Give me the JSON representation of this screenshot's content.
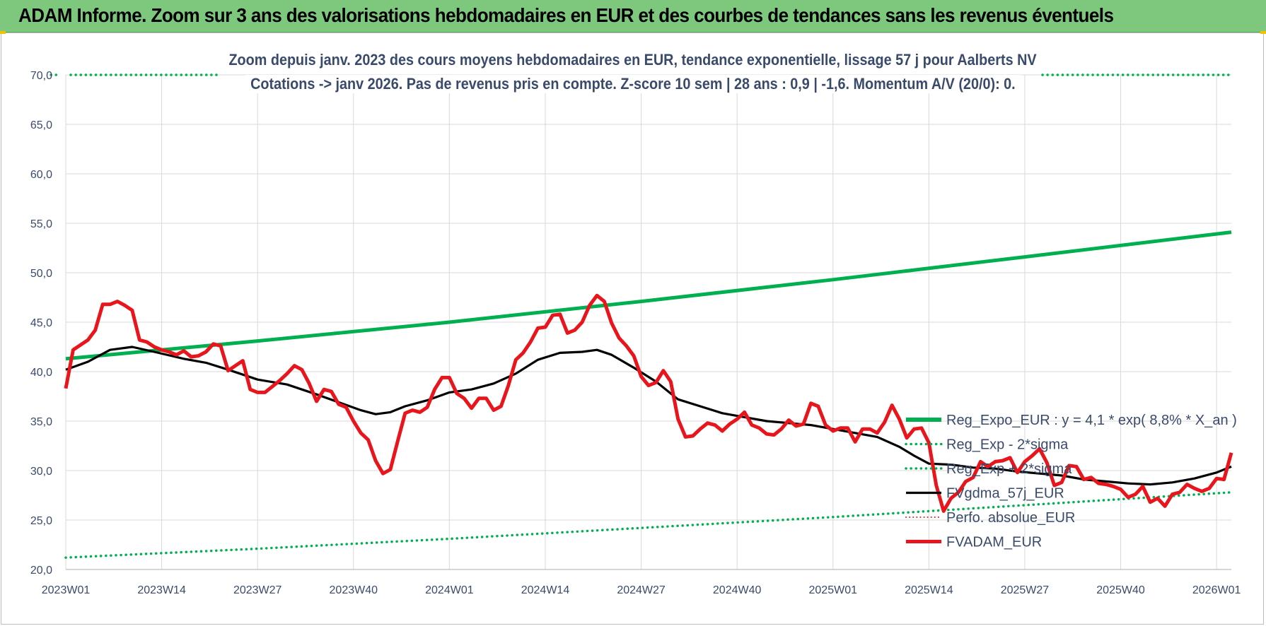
{
  "banner": {
    "title": "ADAM Informe. Zoom sur 3 ans des valorisations hebdomadaires en EUR et des courbes de tendances sans les revenus éventuels"
  },
  "chart_data": {
    "type": "line",
    "title_line1": "Zoom depuis janv. 2023 des cours moyens hebdomadaires en EUR, tendance exponentielle, lissage 57 j pour Aalberts NV",
    "title_line2": "Cotations -> janv 2026. Pas de revenus pris en compte. Z-score 10 sem | 28 ans : 0,9 | -1,6. Momentum A/V (20/0): 0.",
    "ylim": [
      20,
      70
    ],
    "y_ticks": [
      "20,0",
      "25,0",
      "30,0",
      "35,0",
      "40,0",
      "45,0",
      "50,0",
      "55,0",
      "60,0",
      "65,0",
      "70,0"
    ],
    "x_range": [
      0,
      158
    ],
    "x_ticks": [
      {
        "label": "2023W01",
        "x": 0
      },
      {
        "label": "2023W14",
        "x": 13
      },
      {
        "label": "2023W27",
        "x": 26
      },
      {
        "label": "2023W40",
        "x": 39
      },
      {
        "label": "2024W01",
        "x": 52
      },
      {
        "label": "2024W14",
        "x": 65
      },
      {
        "label": "2024W27",
        "x": 78
      },
      {
        "label": "2024W40",
        "x": 91
      },
      {
        "label": "2025W01",
        "x": 104
      },
      {
        "label": "2025W14",
        "x": 117
      },
      {
        "label": "2025W27",
        "x": 130
      },
      {
        "label": "2025W40",
        "x": 143
      },
      {
        "label": "2026W01",
        "x": 156
      }
    ],
    "colors": {
      "reg_expo": "#00b050",
      "reg_minus": "#00b050",
      "reg_plus": "#00b050",
      "fvgdma": "#000000",
      "perfo": "#e0201b",
      "fvadam": "#e8161c",
      "grid": "#d9d9d9"
    },
    "series": [
      {
        "name": "Reg_Expo_EUR : y = 4,1 * exp( 8,8% *  X_an )",
        "key": "reg_expo",
        "style": "solid-thick",
        "points": [
          [
            0,
            41.3
          ],
          [
            26,
            43.1
          ],
          [
            52,
            45.0
          ],
          [
            78,
            47.1
          ],
          [
            104,
            49.3
          ],
          [
            130,
            51.6
          ],
          [
            158,
            54.1
          ]
        ]
      },
      {
        "name": "Reg_Exp - 2*sigma",
        "key": "reg_minus",
        "style": "dotted",
        "points": [
          [
            0,
            21.2
          ],
          [
            26,
            22.1
          ],
          [
            52,
            23.1
          ],
          [
            78,
            24.2
          ],
          [
            104,
            25.3
          ],
          [
            130,
            26.5
          ],
          [
            158,
            27.8
          ]
        ]
      },
      {
        "name": "Reg_Exp + 2*sigma",
        "key": "reg_plus",
        "style": "dotted",
        "points": [
          [
            -2,
            70.0
          ],
          [
            -1,
            70.0
          ]
        ]
      },
      {
        "name": "FVgdma_57j_EUR",
        "key": "fvgdma",
        "style": "solid",
        "points": [
          [
            0,
            40.2
          ],
          [
            3,
            41.0
          ],
          [
            6,
            42.2
          ],
          [
            9,
            42.5
          ],
          [
            12,
            42.0
          ],
          [
            16,
            41.3
          ],
          [
            19,
            40.9
          ],
          [
            22,
            40.2
          ],
          [
            26,
            39.2
          ],
          [
            30,
            38.7
          ],
          [
            34,
            37.7
          ],
          [
            37,
            36.9
          ],
          [
            40,
            36.1
          ],
          [
            42,
            35.7
          ],
          [
            44,
            35.9
          ],
          [
            46,
            36.5
          ],
          [
            49,
            37.1
          ],
          [
            52,
            37.9
          ],
          [
            55,
            38.2
          ],
          [
            58,
            38.8
          ],
          [
            61,
            39.8
          ],
          [
            64,
            41.2
          ],
          [
            67,
            41.9
          ],
          [
            70,
            42.0
          ],
          [
            72,
            42.2
          ],
          [
            74,
            41.7
          ],
          [
            77,
            40.4
          ],
          [
            80,
            39.0
          ],
          [
            83,
            37.2
          ],
          [
            86,
            36.5
          ],
          [
            89,
            35.8
          ],
          [
            92,
            35.4
          ],
          [
            95,
            35.0
          ],
          [
            98,
            34.8
          ],
          [
            101,
            34.6
          ],
          [
            104,
            34.2
          ],
          [
            107,
            33.8
          ],
          [
            110,
            33.4
          ],
          [
            113,
            32.4
          ],
          [
            115,
            31.5
          ],
          [
            117,
            30.7
          ],
          [
            120,
            30.6
          ],
          [
            123,
            30.3
          ],
          [
            126,
            30.2
          ],
          [
            129,
            29.9
          ],
          [
            132,
            29.7
          ],
          [
            135,
            29.5
          ],
          [
            138,
            29.1
          ],
          [
            141,
            28.9
          ],
          [
            144,
            28.7
          ],
          [
            147,
            28.6
          ],
          [
            150,
            28.8
          ],
          [
            153,
            29.2
          ],
          [
            156,
            29.8
          ],
          [
            158,
            30.4
          ]
        ]
      },
      {
        "name": "Perfo. absolue_EUR",
        "key": "perfo",
        "style": "dotted-thin",
        "points": []
      },
      {
        "name": "FVADAM_EUR",
        "key": "fvadam",
        "style": "solid-thick",
        "points": [
          [
            0,
            38.3
          ],
          [
            1,
            42.2
          ],
          [
            2,
            42.7
          ],
          [
            3,
            43.2
          ],
          [
            4,
            44.2
          ],
          [
            5,
            46.8
          ],
          [
            6,
            46.8
          ],
          [
            7,
            47.1
          ],
          [
            8,
            46.7
          ],
          [
            9,
            46.2
          ],
          [
            10,
            43.2
          ],
          [
            11,
            43.0
          ],
          [
            12,
            42.5
          ],
          [
            13,
            42.2
          ],
          [
            14,
            42.0
          ],
          [
            15,
            41.7
          ],
          [
            16,
            42.1
          ],
          [
            17,
            41.5
          ],
          [
            18,
            41.6
          ],
          [
            19,
            42.0
          ],
          [
            20,
            42.8
          ],
          [
            21,
            42.6
          ],
          [
            22,
            40.1
          ],
          [
            23,
            40.6
          ],
          [
            24,
            41.1
          ],
          [
            25,
            38.2
          ],
          [
            26,
            37.9
          ],
          [
            27,
            37.9
          ],
          [
            28,
            38.5
          ],
          [
            29,
            39.1
          ],
          [
            30,
            39.8
          ],
          [
            31,
            40.6
          ],
          [
            32,
            40.2
          ],
          [
            33,
            38.8
          ],
          [
            34,
            37.0
          ],
          [
            35,
            38.2
          ],
          [
            36,
            38.0
          ],
          [
            37,
            36.7
          ],
          [
            38,
            36.4
          ],
          [
            39,
            35.0
          ],
          [
            40,
            33.8
          ],
          [
            41,
            33.1
          ],
          [
            42,
            31.0
          ],
          [
            43,
            29.7
          ],
          [
            44,
            30.1
          ],
          [
            45,
            33.0
          ],
          [
            46,
            35.8
          ],
          [
            47,
            36.1
          ],
          [
            48,
            35.9
          ],
          [
            49,
            36.4
          ],
          [
            50,
            38.2
          ],
          [
            51,
            39.4
          ],
          [
            52,
            39.4
          ],
          [
            53,
            37.8
          ],
          [
            54,
            37.3
          ],
          [
            55,
            36.3
          ],
          [
            56,
            37.3
          ],
          [
            57,
            37.3
          ],
          [
            58,
            36.1
          ],
          [
            59,
            36.5
          ],
          [
            60,
            38.6
          ],
          [
            61,
            41.2
          ],
          [
            62,
            41.9
          ],
          [
            63,
            43.0
          ],
          [
            64,
            44.4
          ],
          [
            65,
            44.5
          ],
          [
            66,
            45.7
          ],
          [
            67,
            45.8
          ],
          [
            68,
            43.9
          ],
          [
            69,
            44.2
          ],
          [
            70,
            45.0
          ],
          [
            71,
            46.7
          ],
          [
            72,
            47.7
          ],
          [
            73,
            47.1
          ],
          [
            74,
            44.9
          ],
          [
            75,
            43.4
          ],
          [
            76,
            42.6
          ],
          [
            77,
            41.6
          ],
          [
            78,
            39.5
          ],
          [
            79,
            38.6
          ],
          [
            80,
            38.9
          ],
          [
            81,
            40.1
          ],
          [
            82,
            39.0
          ],
          [
            83,
            35.2
          ],
          [
            84,
            33.4
          ],
          [
            85,
            33.5
          ],
          [
            86,
            34.2
          ],
          [
            87,
            34.8
          ],
          [
            88,
            34.6
          ],
          [
            89,
            34.0
          ],
          [
            90,
            34.7
          ],
          [
            91,
            35.2
          ],
          [
            92,
            35.9
          ],
          [
            93,
            34.6
          ],
          [
            94,
            34.3
          ],
          [
            95,
            33.7
          ],
          [
            96,
            33.6
          ],
          [
            97,
            34.2
          ],
          [
            98,
            35.1
          ],
          [
            99,
            34.5
          ],
          [
            100,
            34.7
          ],
          [
            101,
            36.8
          ],
          [
            102,
            36.5
          ],
          [
            103,
            34.6
          ],
          [
            104,
            34.0
          ],
          [
            105,
            34.3
          ],
          [
            106,
            34.3
          ],
          [
            107,
            32.9
          ],
          [
            108,
            34.2
          ],
          [
            109,
            34.2
          ],
          [
            110,
            33.8
          ],
          [
            111,
            34.9
          ],
          [
            112,
            36.6
          ],
          [
            113,
            35.2
          ],
          [
            114,
            33.3
          ],
          [
            115,
            34.2
          ],
          [
            116,
            34.3
          ],
          [
            117,
            32.8
          ],
          [
            118,
            28.5
          ],
          [
            119,
            25.9
          ],
          [
            120,
            27.2
          ],
          [
            121,
            27.8
          ],
          [
            122,
            28.9
          ],
          [
            123,
            29.3
          ],
          [
            124,
            30.9
          ],
          [
            125,
            30.4
          ],
          [
            126,
            30.9
          ],
          [
            127,
            31.0
          ],
          [
            128,
            31.3
          ],
          [
            129,
            29.8
          ],
          [
            130,
            30.9
          ],
          [
            131,
            31.5
          ],
          [
            132,
            32.2
          ],
          [
            133,
            30.8
          ],
          [
            134,
            28.5
          ],
          [
            135,
            28.8
          ],
          [
            136,
            30.5
          ],
          [
            137,
            30.4
          ],
          [
            138,
            29.1
          ],
          [
            139,
            29.3
          ],
          [
            140,
            28.7
          ],
          [
            141,
            28.6
          ],
          [
            142,
            28.4
          ],
          [
            143,
            28.1
          ],
          [
            144,
            27.3
          ],
          [
            145,
            27.6
          ],
          [
            146,
            28.4
          ],
          [
            147,
            26.8
          ],
          [
            148,
            27.2
          ],
          [
            149,
            26.4
          ],
          [
            150,
            27.6
          ],
          [
            151,
            27.8
          ],
          [
            152,
            28.6
          ],
          [
            153,
            28.2
          ],
          [
            154,
            27.9
          ],
          [
            155,
            28.2
          ],
          [
            156,
            29.2
          ],
          [
            157,
            29.1
          ],
          [
            158,
            31.8
          ]
        ]
      }
    ]
  }
}
